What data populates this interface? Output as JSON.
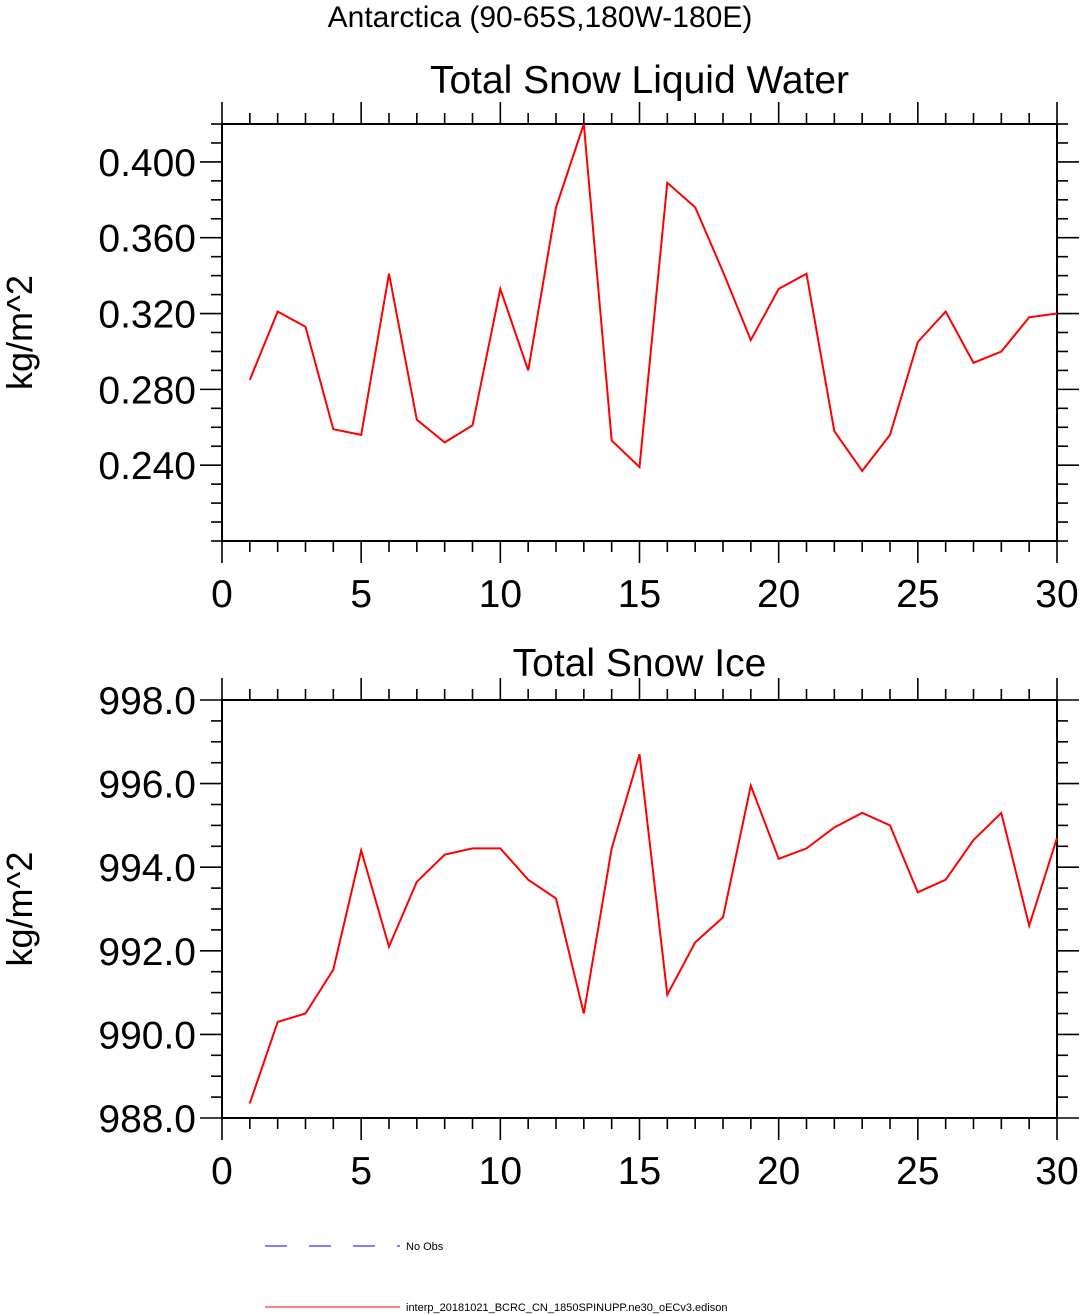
{
  "page": {
    "title": "Antarctica (90-65S,180W-180E)"
  },
  "chart_data": [
    {
      "type": "line",
      "title": "Total Snow Liquid Water",
      "xlabel": "",
      "ylabel": "kg/m^2",
      "xlim": [
        0,
        30
      ],
      "ylim": [
        0.2,
        0.42
      ],
      "x_ticks": [
        0,
        5,
        10,
        15,
        20,
        25,
        30
      ],
      "x_tick_labels": [
        "0",
        "5",
        "10",
        "15",
        "20",
        "25",
        "30"
      ],
      "y_ticks": [
        0.24,
        0.28,
        0.32,
        0.36,
        0.4
      ],
      "y_tick_labels": [
        "0.240",
        "0.280",
        "0.320",
        "0.360",
        "0.400"
      ],
      "grid": false,
      "x": [
        1,
        2,
        3,
        4,
        5,
        6,
        7,
        8,
        9,
        10,
        11,
        12,
        13,
        14,
        15,
        16,
        17,
        18,
        19,
        20,
        21,
        22,
        23,
        24,
        25,
        26,
        27,
        28,
        29,
        30
      ],
      "series": [
        {
          "color": "#ff0000",
          "values": [
            0.285,
            0.321,
            0.313,
            0.259,
            0.256,
            0.341,
            0.264,
            0.252,
            0.261,
            0.333,
            0.29,
            0.376,
            0.42,
            0.253,
            0.239,
            0.389,
            0.376,
            0.342,
            0.306,
            0.333,
            0.341,
            0.258,
            0.237,
            0.256,
            0.305,
            0.321,
            0.294,
            0.3,
            0.318,
            0.32
          ]
        }
      ]
    },
    {
      "type": "line",
      "title": "Total Snow Ice",
      "xlabel": "",
      "ylabel": "kg/m^2",
      "xlim": [
        0,
        30
      ],
      "ylim": [
        988.0,
        998.0
      ],
      "x_ticks": [
        0,
        5,
        10,
        15,
        20,
        25,
        30
      ],
      "x_tick_labels": [
        "0",
        "5",
        "10",
        "15",
        "20",
        "25",
        "30"
      ],
      "y_ticks": [
        988,
        990,
        992,
        994,
        996,
        998
      ],
      "y_tick_labels": [
        "988.0",
        "990.0",
        "992.0",
        "994.0",
        "996.0",
        "998.0"
      ],
      "grid": false,
      "x": [
        1,
        2,
        3,
        4,
        5,
        6,
        7,
        8,
        9,
        10,
        11,
        12,
        13,
        14,
        15,
        16,
        17,
        18,
        19,
        20,
        21,
        22,
        23,
        24,
        25,
        26,
        27,
        28,
        29,
        30
      ],
      "series": [
        {
          "color": "#ff0000",
          "values": [
            988.35,
            990.3,
            990.5,
            991.55,
            994.4,
            992.1,
            993.65,
            994.3,
            994.45,
            994.45,
            993.7,
            993.25,
            990.5,
            994.45,
            996.7,
            990.95,
            992.2,
            992.8,
            995.95,
            994.2,
            994.45,
            994.95,
            995.3,
            995.0,
            993.4,
            993.7,
            994.65,
            995.3,
            992.6,
            994.7
          ]
        }
      ]
    }
  ],
  "legend": {
    "entries": [
      {
        "label": "No Obs",
        "color": "#0000ff",
        "style": "dashed"
      },
      {
        "label": "interp_20181021_BCRC_CN_1850SPINUPP.ne30_oECv3.edison",
        "color": "#ff0000",
        "style": "solid"
      }
    ]
  }
}
